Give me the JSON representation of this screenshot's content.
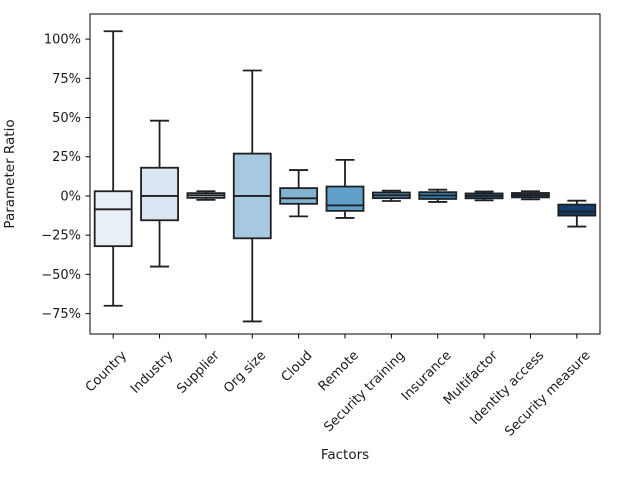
{
  "chart_data": {
    "type": "boxplot",
    "title": "",
    "xlabel": "Factors",
    "ylabel": "Parameter Ratio",
    "ylim": [
      -88,
      116
    ],
    "grid": false,
    "legend": null,
    "background_color": "#ffffff",
    "edge_color": "#1f1f1f",
    "yticks": [
      {
        "value": -75,
        "label": "−75%"
      },
      {
        "value": -50,
        "label": "−50%"
      },
      {
        "value": -25,
        "label": "−25%"
      },
      {
        "value": 0,
        "label": "0%"
      },
      {
        "value": 25,
        "label": "25%"
      },
      {
        "value": 50,
        "label": "50%"
      },
      {
        "value": 75,
        "label": "75%"
      },
      {
        "value": 100,
        "label": "100%"
      }
    ],
    "categories": [
      "Country",
      "Industry",
      "Supplier",
      "Org size",
      "Cloud",
      "Remote",
      "Security training",
      "Insurance",
      "Multifactor",
      "Identity access",
      "Security measure"
    ],
    "series": [
      {
        "name": "Country",
        "low": -70,
        "q1": -32,
        "median": -8.5,
        "q3": 3,
        "high": 105,
        "fill": "#e9eff7"
      },
      {
        "name": "Industry",
        "low": -45,
        "q1": -15.5,
        "median": 0,
        "q3": 18,
        "high": 48,
        "fill": "#d9e5f1"
      },
      {
        "name": "Supplier",
        "low": -2.5,
        "q1": -1.2,
        "median": 0.4,
        "q3": 1.8,
        "high": 3,
        "fill": "#c4d9ec"
      },
      {
        "name": "Org size",
        "low": -80,
        "q1": -27,
        "median": 0,
        "q3": 27,
        "high": 80,
        "fill": "#a6c9e0"
      },
      {
        "name": "Cloud",
        "low": -13,
        "q1": -5,
        "median": -1.5,
        "q3": 5,
        "high": 16.5,
        "fill": "#82b3d3"
      },
      {
        "name": "Remote",
        "low": -14,
        "q1": -9.5,
        "median": -6,
        "q3": 6,
        "high": 23,
        "fill": "#609fc8"
      },
      {
        "name": "Security training",
        "low": -3.2,
        "q1": -1.4,
        "median": 0.4,
        "q3": 2.2,
        "high": 3.4,
        "fill": "#4690bf"
      },
      {
        "name": "Insurance",
        "low": -3.8,
        "q1": -1.9,
        "median": 0.3,
        "q3": 2.4,
        "high": 4,
        "fill": "#2f7cb3"
      },
      {
        "name": "Multifactor",
        "low": -2.8,
        "q1": -1.5,
        "median": 0.1,
        "q3": 1.6,
        "high": 2.8,
        "fill": "#1e689f"
      },
      {
        "name": "Identity access",
        "low": -2.2,
        "q1": -0.9,
        "median": 0.5,
        "q3": 1.9,
        "high": 3,
        "fill": "#14538b"
      },
      {
        "name": "Security measure",
        "low": -19.5,
        "q1": -12.5,
        "median": -10,
        "q3": -5.5,
        "high": -3,
        "fill": "#153f70"
      }
    ]
  }
}
